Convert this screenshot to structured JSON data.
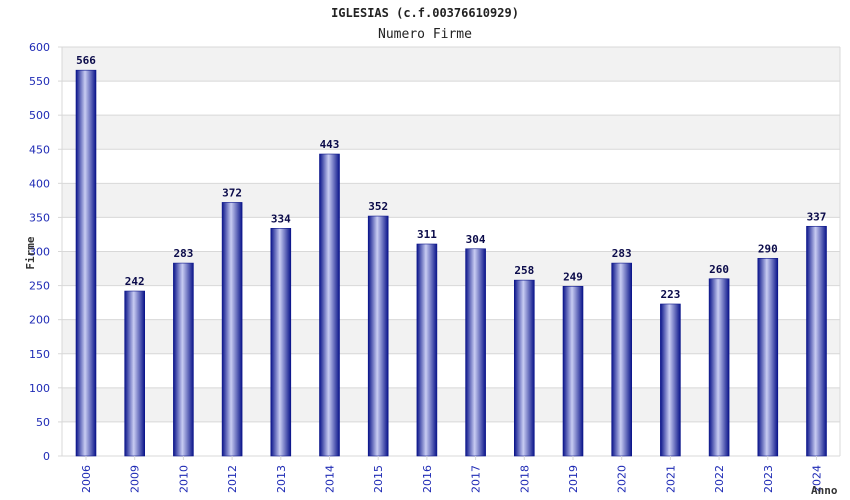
{
  "chart_data": {
    "type": "bar",
    "title": "IGLESIAS (c.f.00376610929)",
    "subtitle": "Numero Firme",
    "xlabel": "Anno",
    "ylabel": "Firme",
    "ylim": [
      0,
      600
    ],
    "ytick_step": 50,
    "grid": true,
    "categories": [
      "2006",
      "2009",
      "2010",
      "2012",
      "2013",
      "2014",
      "2015",
      "2016",
      "2017",
      "2018",
      "2019",
      "2020",
      "2021",
      "2022",
      "2023",
      "2024"
    ],
    "values": [
      566,
      242,
      283,
      372,
      334,
      443,
      352,
      311,
      304,
      258,
      249,
      283,
      223,
      260,
      290,
      337
    ],
    "colors": {
      "bar_dark": "#0a148a",
      "bar_light": "#c8ccf2",
      "band": "#f2f2f2",
      "gridline": "#d8d8d8",
      "axis_text": "#1f2bb5"
    }
  }
}
